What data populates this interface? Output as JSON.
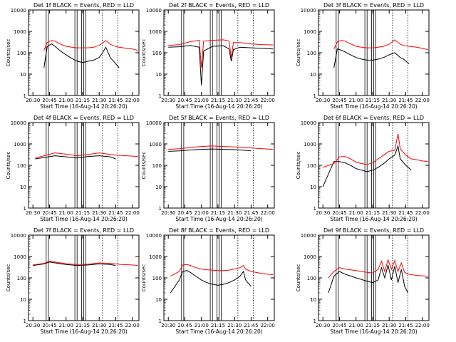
{
  "figure": {
    "xlabel": "Start Time (16-Aug-14 20:26:20)",
    "ylabel": "Counts/sec",
    "x_tick_labels": [
      "20:30",
      "20:45",
      "21:00",
      "21:15",
      "21:30",
      "21:45",
      "22:00"
    ],
    "y_tick_labels": [
      "1",
      "10",
      "100",
      "1000",
      "10000"
    ],
    "colors": {
      "events": "#000000",
      "lld": "#ff0000",
      "axes": "#000000",
      "background": "#ffffff"
    }
  },
  "chart_data": [
    {
      "type": "line",
      "title": "Det 1f BLACK = Events, RED = LLD",
      "xlabel": "Start Time (16-Aug-14 20:26:20)",
      "ylabel": "Counts/sec",
      "xlim": [
        "20:26",
        "22:06"
      ],
      "ylim": [
        1,
        10000
      ],
      "yscale": "log",
      "x": [
        "20:40",
        "20:43",
        "20:47",
        "20:50",
        "20:55",
        "21:00",
        "21:05",
        "21:10",
        "21:15",
        "21:20",
        "21:25",
        "21:30",
        "21:33",
        "21:36",
        "21:40",
        "21:43",
        "21:48",
        "21:55",
        "22:00",
        "22:05"
      ],
      "series": [
        {
          "name": "Events",
          "values": [
            20,
            200,
            260,
            200,
            120,
            80,
            55,
            40,
            35,
            40,
            45,
            60,
            100,
            180,
            60,
            40,
            20,
            null,
            null,
            null
          ]
        },
        {
          "name": "LLD",
          "values": [
            130,
            300,
            380,
            350,
            250,
            200,
            180,
            170,
            170,
            170,
            180,
            220,
            280,
            370,
            250,
            210,
            180,
            160,
            150,
            130
          ]
        }
      ]
    },
    {
      "type": "line",
      "title": "Det 2f BLACK = Events, RED = LLD",
      "xlabel": "Start Time (16-Aug-14 20:26:20)",
      "ylabel": "Counts/sec",
      "xlim": [
        "20:26",
        "22:06"
      ],
      "ylim": [
        1,
        10000
      ],
      "yscale": "log",
      "x": [
        "20:30",
        "20:40",
        "20:50",
        "20:58",
        "21:00",
        "21:02",
        "21:10",
        "21:20",
        "21:25",
        "21:27",
        "21:29",
        "21:35",
        "21:45",
        "21:55",
        "22:05"
      ],
      "series": [
        {
          "name": "Events",
          "values": [
            180,
            190,
            220,
            180,
            3,
            120,
            200,
            210,
            150,
            40,
            140,
            180,
            170,
            160,
            150
          ]
        },
        {
          "name": "LLD",
          "values": [
            220,
            240,
            330,
            380,
            20,
            350,
            380,
            400,
            350,
            60,
            300,
            300,
            260,
            240,
            230
          ]
        }
      ]
    },
    {
      "type": "line",
      "title": "Det 3f BLACK = Events, RED = LLD",
      "xlabel": "Start Time (16-Aug-14 20:26:20)",
      "ylabel": "Counts/sec",
      "xlim": [
        "20:26",
        "22:06"
      ],
      "ylim": [
        1,
        10000
      ],
      "yscale": "log",
      "x": [
        "20:40",
        "20:43",
        "20:47",
        "20:50",
        "20:55",
        "21:00",
        "21:05",
        "21:10",
        "21:15",
        "21:20",
        "21:25",
        "21:30",
        "21:35",
        "21:40",
        "21:43",
        "21:48",
        "21:55",
        "22:00",
        "22:05"
      ],
      "series": [
        {
          "name": "Events",
          "values": [
            20,
            150,
            130,
            110,
            80,
            60,
            50,
            45,
            45,
            50,
            60,
            80,
            100,
            60,
            50,
            30,
            null,
            null,
            null
          ]
        },
        {
          "name": "LLD",
          "values": [
            150,
            320,
            380,
            350,
            260,
            200,
            180,
            170,
            170,
            180,
            200,
            250,
            400,
            250,
            220,
            200,
            180,
            160,
            140
          ]
        }
      ]
    },
    {
      "type": "line",
      "title": "Det 4f BLACK = Events, RED = LLD",
      "xlabel": "Start Time (16-Aug-14 20:26:20)",
      "ylabel": "Counts/sec",
      "xlim": [
        "20:26",
        "22:06"
      ],
      "ylim": [
        1,
        10000
      ],
      "yscale": "log",
      "x": [
        "20:32",
        "20:40",
        "20:50",
        "21:00",
        "21:10",
        "21:20",
        "21:30",
        "21:40",
        "21:45",
        "21:50",
        "22:00",
        "22:05"
      ],
      "series": [
        {
          "name": "Events",
          "values": [
            200,
            230,
            280,
            250,
            220,
            260,
            280,
            250,
            200,
            null,
            null,
            null
          ]
        },
        {
          "name": "LLD",
          "values": [
            220,
            280,
            380,
            330,
            280,
            320,
            380,
            320,
            300,
            290,
            270,
            260
          ]
        }
      ]
    },
    {
      "type": "line",
      "title": "Det 5f BLACK = Events, RED = LLD",
      "xlabel": "Start Time (16-Aug-14 20:26:20)",
      "ylabel": "Counts/sec",
      "xlim": [
        "20:26",
        "22:06"
      ],
      "ylim": [
        1,
        10000
      ],
      "yscale": "log",
      "x": [
        "20:30",
        "20:40",
        "20:50",
        "21:00",
        "21:10",
        "21:20",
        "21:30",
        "21:40",
        "21:45",
        "21:50",
        "22:00",
        "22:05"
      ],
      "series": [
        {
          "name": "Events",
          "values": [
            450,
            470,
            520,
            560,
            580,
            560,
            540,
            500,
            470,
            null,
            null,
            null
          ]
        },
        {
          "name": "LLD",
          "values": [
            560,
            600,
            680,
            760,
            800,
            760,
            720,
            680,
            650,
            620,
            580,
            550
          ]
        }
      ]
    },
    {
      "type": "line",
      "title": "Det 6f BLACK = Events, RED = LLD",
      "xlabel": "Start Time (16-Aug-14 20:26:20)",
      "ylabel": "Counts/sec",
      "xlim": [
        "20:26",
        "22:06"
      ],
      "ylim": [
        1,
        10000
      ],
      "yscale": "log",
      "x": [
        "20:30",
        "20:40",
        "20:45",
        "20:50",
        "20:55",
        "21:00",
        "21:05",
        "21:10",
        "21:15",
        "21:20",
        "21:25",
        "21:30",
        "21:35",
        "21:38",
        "21:40",
        "21:45",
        "21:50",
        "21:55",
        "22:00",
        "22:05"
      ],
      "series": [
        {
          "name": "Events",
          "values": [
            10,
            150,
            150,
            130,
            100,
            70,
            60,
            50,
            60,
            80,
            120,
            200,
            300,
            800,
            200,
            100,
            60,
            null,
            null,
            null
          ]
        },
        {
          "name": "LLD",
          "values": [
            80,
            120,
            250,
            260,
            200,
            140,
            120,
            110,
            130,
            200,
            300,
            450,
            500,
            3000,
            600,
            300,
            200,
            180,
            160,
            150
          ]
        }
      ]
    },
    {
      "type": "line",
      "title": "Det 7f BLACK = Events, RED = LLD",
      "xlabel": "Start Time (16-Aug-14 20:26:20)",
      "ylabel": "Counts/sec",
      "xlim": [
        "20:26",
        "22:06"
      ],
      "ylim": [
        1,
        10000
      ],
      "yscale": "log",
      "x": [
        "20:30",
        "20:40",
        "20:45",
        "20:50",
        "21:00",
        "21:10",
        "21:20",
        "21:30",
        "21:40",
        "21:45",
        "21:50",
        "22:00",
        "22:05"
      ],
      "series": [
        {
          "name": "Events",
          "values": [
            380,
            450,
            550,
            500,
            420,
            380,
            400,
            450,
            420,
            380,
            null,
            null,
            null
          ]
        },
        {
          "name": "LLD",
          "values": [
            400,
            480,
            600,
            550,
            460,
            420,
            440,
            500,
            480,
            450,
            420,
            400,
            380
          ]
        }
      ]
    },
    {
      "type": "line",
      "title": "Det 8f BLACK = Events, RED = LLD",
      "xlabel": "Start Time (16-Aug-14 20:26:20)",
      "ylabel": "Counts/sec",
      "xlim": [
        "20:26",
        "22:06"
      ],
      "ylim": [
        1,
        10000
      ],
      "yscale": "log",
      "x": [
        "20:32",
        "20:40",
        "20:43",
        "20:47",
        "20:50",
        "20:55",
        "21:00",
        "21:05",
        "21:10",
        "21:15",
        "21:20",
        "21:25",
        "21:30",
        "21:35",
        "21:38",
        "21:40",
        "21:45",
        "21:55",
        "22:05"
      ],
      "series": [
        {
          "name": "Events",
          "values": [
            20,
            80,
            200,
            220,
            180,
            120,
            80,
            60,
            50,
            45,
            50,
            60,
            80,
            120,
            200,
            80,
            40,
            null,
            null
          ]
        },
        {
          "name": "LLD",
          "values": [
            120,
            200,
            400,
            420,
            380,
            300,
            260,
            240,
            230,
            220,
            220,
            230,
            260,
            300,
            380,
            260,
            200,
            160,
            140
          ]
        }
      ]
    },
    {
      "type": "line",
      "title": "Det 9f BLACK = Events, RED = LLD",
      "xlabel": "Start Time (16-Aug-14 20:26:20)",
      "ylabel": "Counts/sec",
      "xlim": [
        "20:26",
        "22:06"
      ],
      "ylim": [
        1,
        10000
      ],
      "yscale": "log",
      "x": [
        "20:35",
        "20:40",
        "20:45",
        "20:50",
        "21:00",
        "21:10",
        "21:15",
        "21:20",
        "21:23",
        "21:26",
        "21:29",
        "21:32",
        "21:35",
        "21:38",
        "21:41",
        "21:44",
        "21:47",
        "21:55",
        "22:05"
      ],
      "series": [
        {
          "name": "Events",
          "values": [
            20,
            120,
            200,
            150,
            100,
            70,
            60,
            80,
            300,
            100,
            400,
            80,
            350,
            60,
            250,
            40,
            20,
            null,
            null
          ]
        },
        {
          "name": "LLD",
          "values": [
            100,
            200,
            300,
            260,
            220,
            180,
            170,
            250,
            600,
            200,
            700,
            250,
            650,
            200,
            500,
            180,
            150,
            130,
            120
          ]
        }
      ]
    }
  ]
}
